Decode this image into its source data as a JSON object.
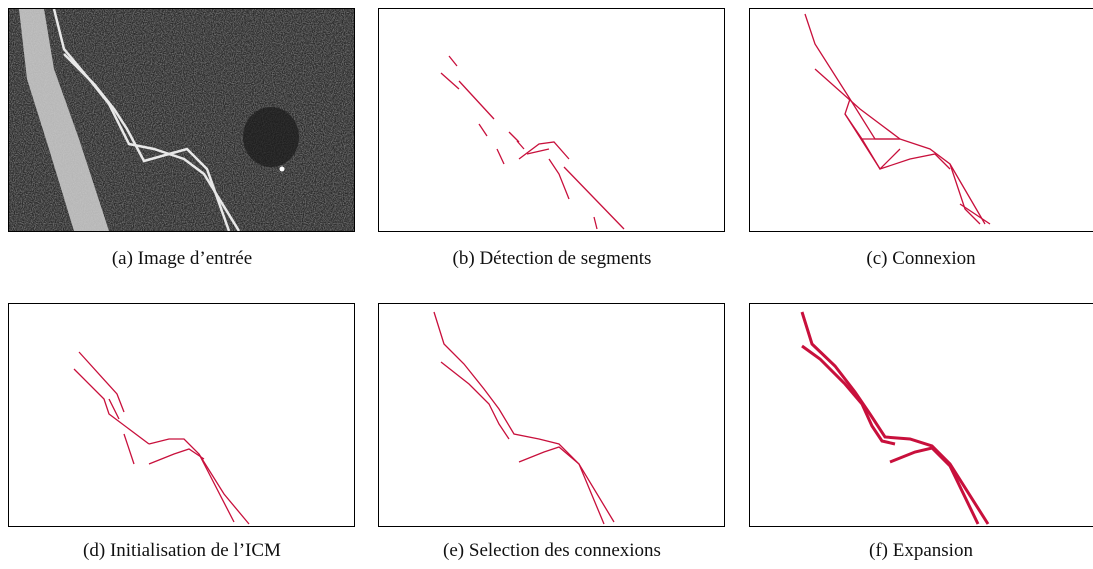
{
  "panels": [
    {
      "caption": "(a) Image d’entrée"
    },
    {
      "caption": "(b) Détection de segments"
    },
    {
      "caption": "(c) Connexion"
    },
    {
      "caption": "(d) Initialisation de l’ICM"
    },
    {
      "caption": "(e) Selection des connexions"
    },
    {
      "caption": "(f) Expansion"
    }
  ]
}
